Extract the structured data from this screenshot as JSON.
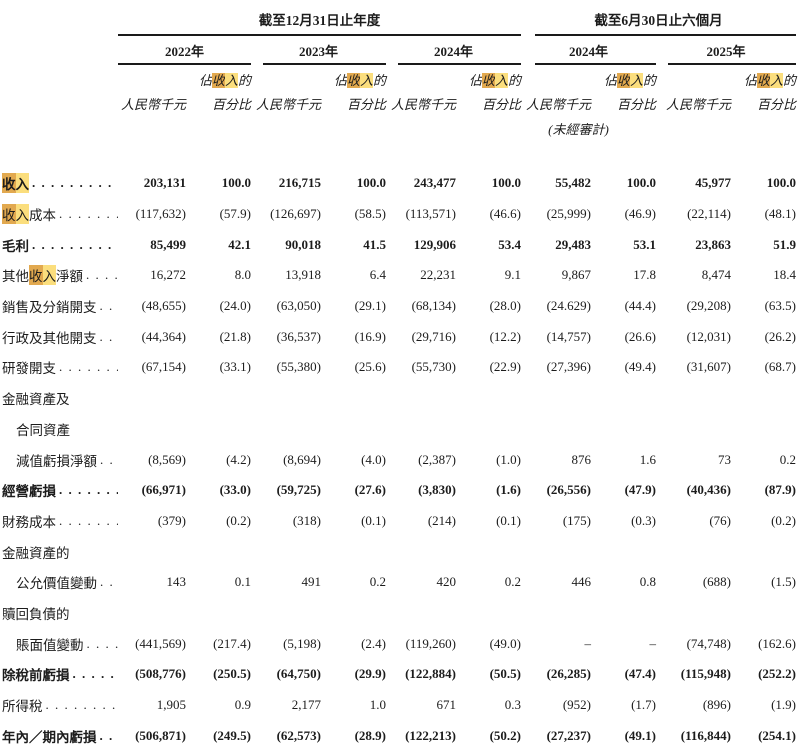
{
  "header": {
    "group_annual": {
      "title": "截至12月31日止年度",
      "years": [
        "2022年",
        "2023年",
        "2024年"
      ]
    },
    "group_interim": {
      "title": "截至6月30日止六個月",
      "years": [
        "2024年",
        "2025年"
      ]
    },
    "subheader": {
      "pct_line_segments": [
        {
          "t": "佔"
        },
        {
          "t": "收",
          "hl": "dark"
        },
        {
          "t": "入",
          "hl": "light"
        },
        {
          "t": "的"
        }
      ],
      "amount_label": "人民幣千元",
      "pct_label": "百分比",
      "unaudited": "(未經審計)"
    }
  },
  "highlight_colors": {
    "active": "#e2a94f",
    "match": "#fbde7d"
  },
  "table": {
    "rows": [
      {
        "bold": true,
        "label_lines": [
          {
            "segments": [
              {
                "t": "收",
                "hl": "dark"
              },
              {
                "t": "入",
                "hl": "light"
              }
            ],
            "leader": true
          }
        ],
        "values": [
          "203,131",
          "100.0",
          "216,715",
          "100.0",
          "243,477",
          "100.0",
          "55,482",
          "100.0",
          "45,977",
          "100.0"
        ]
      },
      {
        "bold": false,
        "label_lines": [
          {
            "segments": [
              {
                "t": "收",
                "hl": "dark"
              },
              {
                "t": "入",
                "hl": "light"
              },
              {
                "t": "成本"
              }
            ],
            "leader": true
          }
        ],
        "values": [
          "(117,632)",
          "(57.9)",
          "(126,697)",
          "(58.5)",
          "(113,571)",
          "(46.6)",
          "(25,999)",
          "(46.9)",
          "(22,114)",
          "(48.1)"
        ]
      },
      {
        "bold": true,
        "label_lines": [
          {
            "segments": [
              {
                "t": "毛利"
              }
            ],
            "leader": true
          }
        ],
        "values": [
          "85,499",
          "42.1",
          "90,018",
          "41.5",
          "129,906",
          "53.4",
          "29,483",
          "53.1",
          "23,863",
          "51.9"
        ]
      },
      {
        "bold": false,
        "label_lines": [
          {
            "segments": [
              {
                "t": "其他"
              },
              {
                "t": "收",
                "hl": "dark"
              },
              {
                "t": "入",
                "hl": "light"
              },
              {
                "t": "淨額"
              }
            ],
            "leader": true
          }
        ],
        "values": [
          "16,272",
          "8.0",
          "13,918",
          "6.4",
          "22,231",
          "9.1",
          "9,867",
          "17.8",
          "8,474",
          "18.4"
        ]
      },
      {
        "bold": false,
        "label_lines": [
          {
            "segments": [
              {
                "t": "銷售及分銷開支"
              }
            ],
            "leader": true
          }
        ],
        "values": [
          "(48,655)",
          "(24.0)",
          "(63,050)",
          "(29.1)",
          "(68,134)",
          "(28.0)",
          "(24.629)",
          "(44.4)",
          "(29,208)",
          "(63.5)"
        ]
      },
      {
        "bold": false,
        "label_lines": [
          {
            "segments": [
              {
                "t": "行政及其他開支"
              }
            ],
            "leader": true
          }
        ],
        "values": [
          "(44,364)",
          "(21.8)",
          "(36,537)",
          "(16.9)",
          "(29,716)",
          "(12.2)",
          "(14,757)",
          "(26.6)",
          "(12,031)",
          "(26.2)"
        ]
      },
      {
        "bold": false,
        "label_lines": [
          {
            "segments": [
              {
                "t": "研發開支"
              }
            ],
            "leader": true
          }
        ],
        "values": [
          "(67,154)",
          "(33.1)",
          "(55,380)",
          "(25.6)",
          "(55,730)",
          "(22.9)",
          "(27,396)",
          "(49.4)",
          "(31,607)",
          "(68.7)"
        ]
      },
      {
        "bold": false,
        "label_lines": [
          {
            "segments": [
              {
                "t": "金融資產及"
              }
            ],
            "leader": false
          },
          {
            "segments": [
              {
                "t": "合同資產"
              }
            ],
            "leader": false,
            "indent": 1
          },
          {
            "segments": [
              {
                "t": "減值虧損淨額"
              }
            ],
            "leader": true,
            "indent": 1
          }
        ],
        "values": [
          "(8,569)",
          "(4.2)",
          "(8,694)",
          "(4.0)",
          "(2,387)",
          "(1.0)",
          "876",
          "1.6",
          "73",
          "0.2"
        ]
      },
      {
        "bold": true,
        "label_lines": [
          {
            "segments": [
              {
                "t": "經營虧損"
              }
            ],
            "leader": true
          }
        ],
        "values": [
          "(66,971)",
          "(33.0)",
          "(59,725)",
          "(27.6)",
          "(3,830)",
          "(1.6)",
          "(26,556)",
          "(47.9)",
          "(40,436)",
          "(87.9)"
        ]
      },
      {
        "bold": false,
        "label_lines": [
          {
            "segments": [
              {
                "t": "財務成本"
              }
            ],
            "leader": true
          }
        ],
        "values": [
          "(379)",
          "(0.2)",
          "(318)",
          "(0.1)",
          "(214)",
          "(0.1)",
          "(175)",
          "(0.3)",
          "(76)",
          "(0.2)"
        ]
      },
      {
        "bold": false,
        "label_lines": [
          {
            "segments": [
              {
                "t": "金融資產的"
              }
            ],
            "leader": false
          },
          {
            "segments": [
              {
                "t": "公允價值變動"
              }
            ],
            "leader": true,
            "indent": 1
          }
        ],
        "values": [
          "143",
          "0.1",
          "491",
          "0.2",
          "420",
          "0.2",
          "446",
          "0.8",
          "(688)",
          "(1.5)"
        ]
      },
      {
        "bold": false,
        "label_lines": [
          {
            "segments": [
              {
                "t": "贖回負債的"
              }
            ],
            "leader": false
          },
          {
            "segments": [
              {
                "t": "賬面值變動"
              }
            ],
            "leader": true,
            "indent": 1
          }
        ],
        "values": [
          "(441,569)",
          "(217.4)",
          "(5,198)",
          "(2.4)",
          "(119,260)",
          "(49.0)",
          "–",
          "–",
          "(74,748)",
          "(162.6)"
        ]
      },
      {
        "bold": true,
        "label_lines": [
          {
            "segments": [
              {
                "t": "除稅前虧損"
              }
            ],
            "leader": true
          }
        ],
        "values": [
          "(508,776)",
          "(250.5)",
          "(64,750)",
          "(29.9)",
          "(122,884)",
          "(50.5)",
          "(26,285)",
          "(47.4)",
          "(115,948)",
          "(252.2)"
        ]
      },
      {
        "bold": false,
        "label_lines": [
          {
            "segments": [
              {
                "t": "所得稅"
              }
            ],
            "leader": true
          }
        ],
        "values": [
          "1,905",
          "0.9",
          "2,177",
          "1.0",
          "671",
          "0.3",
          "(952)",
          "(1.7)",
          "(896)",
          "(1.9)"
        ]
      },
      {
        "bold": true,
        "label_lines": [
          {
            "segments": [
              {
                "t": "年內／期內虧損"
              }
            ],
            "leader": true
          }
        ],
        "values": [
          "(506,871)",
          "(249.5)",
          "(62,573)",
          "(28.9)",
          "(122,213)",
          "(50.2)",
          "(27,237)",
          "(49.1)",
          "(116,844)",
          "(254.1)"
        ]
      }
    ]
  }
}
